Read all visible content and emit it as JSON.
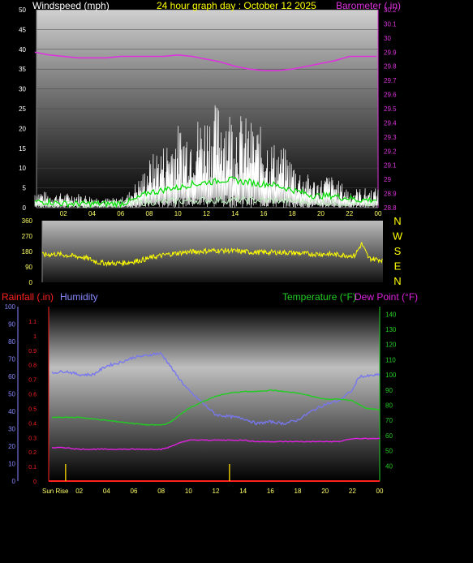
{
  "header": {
    "wind_label": "Windspeed (mph)",
    "title": "24 hour graph day : October 12 2025",
    "baro_label": "Barometer ( in)"
  },
  "lower_header": {
    "rain_label": "Rainfall (.in)",
    "humidity_label": "Humidity",
    "temp_label": "Temperature (°F)",
    "dew_label": "Dew Point (°F)"
  },
  "sunrise_label": "Sun Rise",
  "colors": {
    "wind_gust": "#ffffff",
    "wind_avg": "#00dd00",
    "wind_low": "#b8f0b8",
    "barometer": "#dd33dd",
    "direction": "#ffff00",
    "rain": "#ff2020",
    "humidity": "#7777ee",
    "temperature": "#22cc22",
    "dewpoint": "#dd22dd",
    "sunmarker": "#e0c000"
  },
  "chart_data": [
    {
      "type": "line",
      "name": "wind-barometer",
      "x_ticks": [
        "02",
        "04",
        "06",
        "08",
        "10",
        "12",
        "14",
        "16",
        "18",
        "20",
        "22",
        "00"
      ],
      "y_left_ticks": [
        "0",
        "5",
        "10",
        "15",
        "20",
        "25",
        "30",
        "35",
        "40",
        "45",
        "50"
      ],
      "y_left_range": [
        0,
        50
      ],
      "y_right_ticks": [
        "28.8",
        "28.9",
        "29",
        "29.1",
        "29.2",
        "29.3",
        "29.4",
        "29.5",
        "29.6",
        "29.7",
        "29.8",
        "29.9",
        "30",
        "30.1",
        "30.2"
      ],
      "y_right_range": [
        28.8,
        30.2
      ],
      "series": [
        {
          "key": "wind_gust",
          "x": [
            0,
            1,
            2,
            3,
            4,
            5,
            6,
            6.5,
            7,
            7.5,
            8,
            8.5,
            9,
            9.5,
            10,
            10.5,
            11,
            11.5,
            12,
            12.5,
            13,
            13.5,
            14,
            14.5,
            15,
            15.5,
            16,
            16.5,
            17,
            17.5,
            18,
            18.5,
            19,
            19.5,
            20,
            20.5,
            21,
            21.5,
            22,
            22.5,
            23,
            24
          ],
          "values": [
            4,
            3,
            3,
            3,
            2.5,
            2,
            2,
            3,
            5,
            7,
            10,
            12,
            13,
            15,
            17,
            17,
            18,
            19,
            20,
            21,
            22,
            21,
            20,
            19,
            18,
            17,
            16,
            14,
            13,
            12,
            10,
            8,
            7,
            6,
            6,
            7,
            6,
            5,
            4,
            4,
            4,
            4
          ]
        },
        {
          "key": "wind_avg",
          "x": [
            0,
            1,
            2,
            3,
            4,
            5,
            6,
            6.5,
            7,
            7.5,
            8,
            8.5,
            9,
            9.5,
            10,
            10.5,
            11,
            11.5,
            12,
            12.5,
            13,
            13.5,
            14,
            14.5,
            15,
            15.5,
            16,
            16.5,
            17,
            17.5,
            18,
            18.5,
            19,
            19.5,
            20,
            20.5,
            21,
            21.5,
            22,
            22.5,
            23,
            24
          ],
          "values": [
            1.5,
            1.5,
            1,
            1,
            1,
            1,
            1,
            1.5,
            2,
            3,
            4,
            4,
            4.5,
            5,
            5,
            5.5,
            6,
            6,
            6.5,
            6.5,
            7,
            7,
            7,
            6.5,
            6.5,
            6,
            6,
            6,
            5.5,
            5,
            4.5,
            4,
            3.5,
            3,
            3,
            3,
            3,
            2.5,
            2.5,
            2,
            2,
            2
          ]
        },
        {
          "key": "wind_low",
          "x": [
            0,
            4,
            8,
            12,
            16,
            20,
            24
          ],
          "values": [
            0,
            0,
            0.5,
            1,
            1,
            0.5,
            0
          ]
        },
        {
          "key": "barometer",
          "x": [
            0,
            1,
            2,
            3,
            4,
            5,
            6,
            7,
            8,
            9,
            10,
            11,
            12,
            13,
            14,
            15,
            16,
            17,
            18,
            19,
            20,
            21,
            22,
            23,
            24
          ],
          "values": [
            29.9,
            29.88,
            29.87,
            29.86,
            29.86,
            29.86,
            29.87,
            29.87,
            29.87,
            29.87,
            29.88,
            29.87,
            29.85,
            29.83,
            29.8,
            29.78,
            29.77,
            29.77,
            29.78,
            29.8,
            29.82,
            29.84,
            29.87,
            29.87,
            29.87
          ]
        }
      ]
    },
    {
      "type": "line",
      "name": "wind-direction",
      "x_ticks": [
        "02",
        "04",
        "06",
        "08",
        "10",
        "12",
        "14",
        "16",
        "18",
        "20",
        "22",
        "00"
      ],
      "y_ticks": [
        "0",
        "90",
        "180",
        "270",
        "360"
      ],
      "y_range": [
        0,
        360
      ],
      "compass": [
        "N",
        "W",
        "S",
        "E",
        "N"
      ],
      "series": [
        {
          "key": "direction",
          "x": [
            0,
            1,
            2,
            3,
            4,
            5,
            6,
            7,
            8,
            9,
            10,
            11,
            12,
            13,
            14,
            15,
            16,
            17,
            18,
            19,
            20,
            21,
            22,
            22.5,
            23,
            24
          ],
          "values": [
            160,
            165,
            155,
            145,
            115,
            110,
            115,
            130,
            150,
            165,
            175,
            180,
            185,
            185,
            180,
            175,
            175,
            175,
            170,
            165,
            165,
            160,
            155,
            225,
            140,
            130
          ]
        }
      ]
    },
    {
      "type": "line",
      "name": "rain-humidity-temperature",
      "x_ticks": [
        "02",
        "04",
        "06",
        "08",
        "10",
        "12",
        "14",
        "16",
        "18",
        "20",
        "22",
        "00"
      ],
      "humidity_ticks": [
        "0",
        "10",
        "20",
        "30",
        "40",
        "50",
        "60",
        "70",
        "80",
        "90",
        "100"
      ],
      "humidity_range": [
        0,
        100
      ],
      "rain_ticks": [
        "0",
        "0.1",
        "0.2",
        "0.3",
        "0.4",
        "0.5",
        "0.6",
        "0.7",
        "0.8",
        "0.9",
        "1",
        "1.1"
      ],
      "rain_range": [
        0,
        1.2
      ],
      "temp_ticks": [
        "40",
        "50",
        "60",
        "70",
        "80",
        "90",
        "100",
        "110",
        "120",
        "130",
        "140"
      ],
      "temp_range": [
        30,
        145
      ],
      "series": [
        {
          "key": "humidity",
          "x": [
            0,
            1,
            2,
            3,
            4,
            5,
            6,
            7,
            7.5,
            8,
            8.5,
            9,
            10,
            11,
            12,
            13,
            14,
            15,
            16,
            17,
            18,
            19,
            20,
            21,
            22,
            22.5,
            23,
            24
          ],
          "values": [
            62,
            63,
            61,
            61,
            66,
            68,
            71,
            72,
            73,
            73,
            68,
            62,
            52,
            45,
            38,
            37,
            36,
            33,
            34,
            33,
            35,
            40,
            44,
            46,
            52,
            60,
            60,
            61
          ]
        },
        {
          "key": "temperature",
          "x": [
            0,
            1,
            2,
            3,
            4,
            5,
            6,
            7,
            8,
            8.5,
            9,
            10,
            11,
            12,
            13,
            14,
            15,
            16,
            17,
            18,
            19,
            20,
            21,
            22,
            23,
            24
          ],
          "values": [
            72,
            72,
            72,
            71,
            70,
            69,
            68,
            67,
            67,
            68,
            71,
            78,
            82,
            86,
            88,
            89,
            89,
            90,
            89,
            88,
            86,
            84,
            84,
            83,
            78,
            77
          ]
        },
        {
          "key": "dewpoint",
          "x": [
            0,
            1,
            2,
            3,
            4,
            5,
            6,
            7,
            8,
            8.5,
            9,
            10,
            11,
            12,
            13,
            14,
            15,
            16,
            17,
            18,
            19,
            20,
            21,
            22,
            23,
            24
          ],
          "values": [
            52,
            52,
            51,
            51,
            51,
            51,
            51,
            51,
            51,
            52,
            54,
            57,
            57,
            57,
            57,
            57,
            56,
            56,
            56,
            56,
            56,
            56,
            56,
            58,
            58,
            58
          ]
        },
        {
          "key": "rain",
          "x": [
            0,
            24
          ],
          "values": [
            0,
            0
          ]
        }
      ],
      "sun_markers_hours": [
        1,
        13
      ]
    }
  ]
}
